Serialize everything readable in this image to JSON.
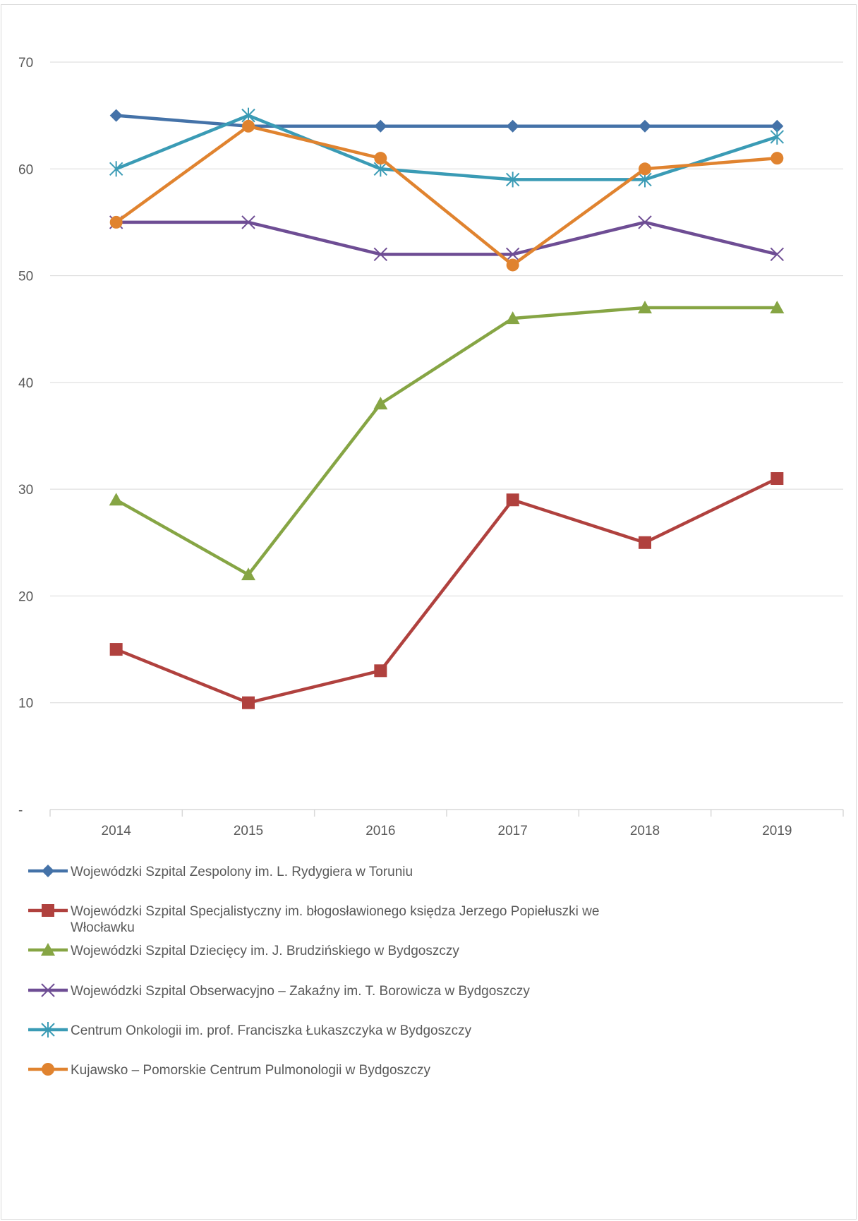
{
  "chart_data": {
    "type": "line",
    "title": "",
    "xlabel": "",
    "ylabel": "",
    "categories": [
      "2014",
      "2015",
      "2016",
      "2017",
      "2018",
      "2019"
    ],
    "ylim": [
      0,
      70
    ],
    "y_ticks": [
      0,
      10,
      20,
      30,
      40,
      50,
      60,
      70
    ],
    "y_tick_labels": [
      "-",
      "10",
      "20",
      "30",
      "40",
      "50",
      "60",
      "70"
    ],
    "grid": true,
    "legend_position": "bottom",
    "series": [
      {
        "name": "Wojewódzki Szpital Zespolony im. L. Rydygiera w Toruniu",
        "legend_lines": [
          "Wojewódzki Szpital Zespolony im. L. Rydygiera w Toruniu"
        ],
        "color": "#4472a8",
        "marker": "diamond",
        "values": [
          65,
          64,
          64,
          64,
          64,
          64
        ]
      },
      {
        "name": "Wojewódzki Szpital Specjalistyczny im. błogosławionego księdza Jerzego Popiełuszki we Włocławku",
        "legend_lines": [
          "Wojewódzki Szpital Specjalistyczny im. błogosławionego księdza Jerzego Popiełuszki we",
          "Włocławku"
        ],
        "color": "#b0413e",
        "marker": "square",
        "values": [
          15,
          10,
          13,
          29,
          25,
          31
        ]
      },
      {
        "name": "Wojewódzki Szpital Dziecięcy im. J. Brudzińskiego w Bydgoszczy",
        "legend_lines": [
          "Wojewódzki Szpital Dziecięcy im. J. Brudzińskiego w Bydgoszczy"
        ],
        "color": "#86a544",
        "marker": "triangle",
        "values": [
          29,
          22,
          38,
          46,
          47,
          47
        ]
      },
      {
        "name": "Wojewódzki Szpital Obserwacyjno – Zakaźny im. T. Borowicza w Bydgoszczy",
        "legend_lines": [
          "Wojewódzki Szpital Obserwacyjno – Zakaźny im. T. Borowicza w Bydgoszczy"
        ],
        "color": "#6e4d94",
        "marker": "x",
        "values": [
          55,
          55,
          52,
          52,
          55,
          52
        ]
      },
      {
        "name": "Centrum Onkologii im. prof. Franciszka Łukaszczyka w Bydgoszczy",
        "legend_lines": [
          "Centrum Onkologii im. prof. Franciszka Łukaszczyka w Bydgoszczy"
        ],
        "color": "#3a9bb5",
        "marker": "star",
        "values": [
          60,
          65,
          60,
          59,
          59,
          63
        ]
      },
      {
        "name": "Kujawsko – Pomorskie Centrum Pulmonologii w Bydgoszczy",
        "legend_lines": [
          "Kujawsko – Pomorskie Centrum Pulmonologii w Bydgoszczy"
        ],
        "color": "#e0832f",
        "marker": "circle",
        "values": [
          55,
          64,
          61,
          51,
          60,
          61
        ]
      }
    ]
  }
}
